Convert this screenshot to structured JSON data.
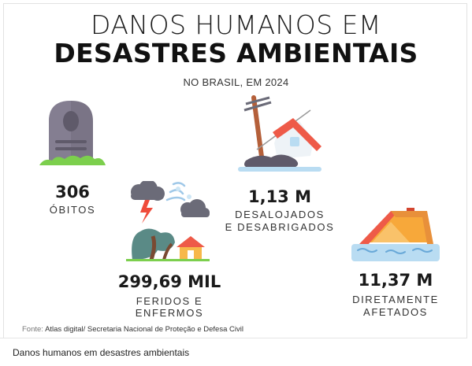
{
  "header": {
    "title_line1": "DANOS HUMANOS EM",
    "title_line2": "DESASTRES AMBIENTAIS",
    "subtitle": "NO BRASIL, EM 2024"
  },
  "stats": {
    "obitos": {
      "value": "306",
      "label": "ÓBITOS",
      "icon": "tombstone-icon"
    },
    "feridos": {
      "value": "299,69 MIL",
      "label_line1": "FERIDOS E",
      "label_line2": "ENFERMOS",
      "icon": "storm-icon"
    },
    "desalojados": {
      "value": "1,13 M",
      "label_line1": "DESALOJADOS",
      "label_line2": "E DESABRIGADOS",
      "icon": "collapsed-house-icon"
    },
    "afetados": {
      "value": "11,37 M",
      "label_line1": "DIRETAMENTE",
      "label_line2": "AFETADOS",
      "icon": "flooded-house-icon"
    }
  },
  "source": {
    "lead": "Fonte:",
    "text": "Atlas digital/ Secretaria Nacional de Proteção e Defesa Civil"
  },
  "caption": "Danos humanos em desastres ambientais",
  "colors": {
    "tombstone": "#7a7486",
    "grass": "#7ccf4d",
    "cloud": "#6b6b78",
    "lightning": "#ef4b3a",
    "tree": "#5a8a86",
    "roof": "#ee5a48",
    "water": "#b9dcf2",
    "house": "#f7b84a"
  }
}
